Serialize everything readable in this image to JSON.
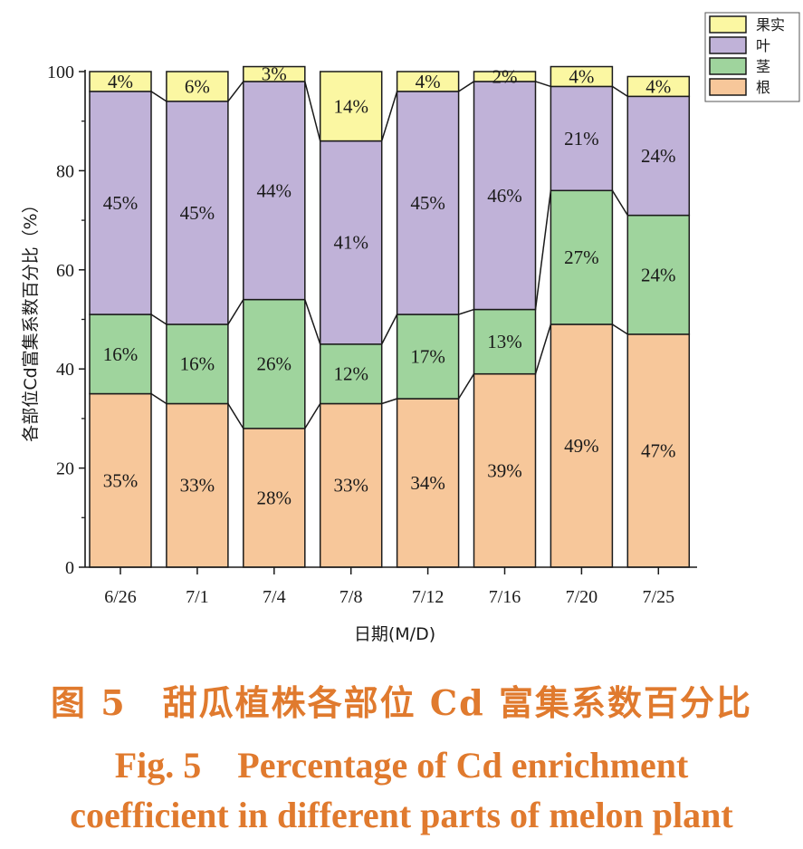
{
  "chart_data": {
    "type": "bar",
    "stacked": true,
    "title": "",
    "xlabel": "日期(M/D)",
    "ylabel": "各部位Cd富集系数百分比（%）",
    "ylim": [
      0,
      100
    ],
    "yticks": [
      0,
      20,
      40,
      60,
      80,
      100
    ],
    "yminor_ticks": [
      10,
      30,
      50,
      70,
      90
    ],
    "grid": false,
    "legend_position": "top-right",
    "categories": [
      "6/26",
      "7/1",
      "7/4",
      "7/8",
      "7/12",
      "7/16",
      "7/20",
      "7/25"
    ],
    "series": [
      {
        "name": "根",
        "color": "#f7c79a",
        "values": [
          35,
          33,
          28,
          33,
          34,
          39,
          49,
          47
        ]
      },
      {
        "name": "茎",
        "color": "#9fd49d",
        "values": [
          16,
          16,
          26,
          12,
          17,
          13,
          27,
          24
        ]
      },
      {
        "name": "叶",
        "color": "#c0b2d8",
        "values": [
          45,
          45,
          44,
          41,
          45,
          46,
          21,
          24
        ]
      },
      {
        "name": "果实",
        "color": "#fbf7a2",
        "values": [
          4,
          6,
          3,
          14,
          4,
          2,
          4,
          4
        ]
      }
    ],
    "legend_order": [
      "果实",
      "叶",
      "茎",
      "根"
    ],
    "connector_lines": true,
    "label_suffix": "%"
  },
  "caption": {
    "chinese": "图 5　甜瓜植株各部位 Cd 富集系数百分比",
    "english_line1": "Fig. 5　Percentage of Cd enrichment",
    "english_line2": "coefficient in different parts of melon plant"
  }
}
